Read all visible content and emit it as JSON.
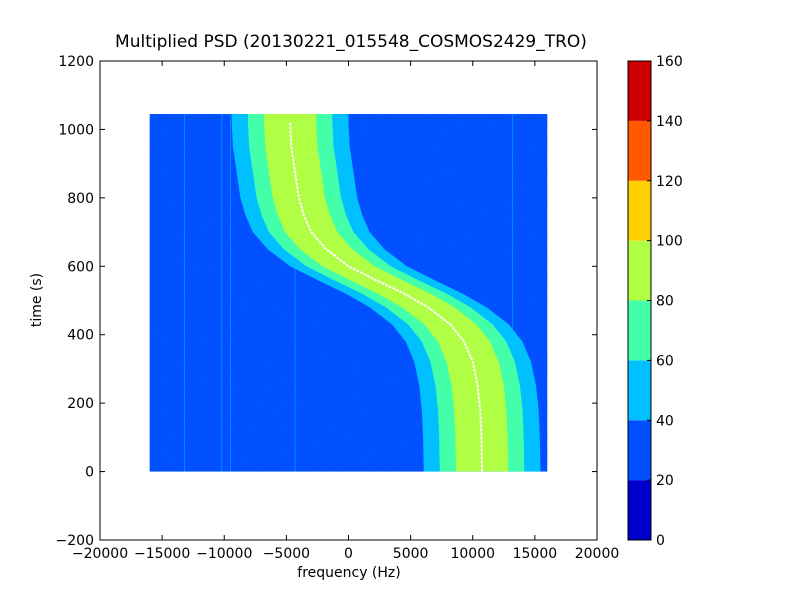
{
  "chart_data": {
    "type": "heatmap",
    "title": "Multiplied PSD (20130221_015548_COSMOS2429_TRO)",
    "xlabel": "frequency (Hz)",
    "ylabel": "time (s)",
    "xlim": [
      -20000,
      20000
    ],
    "ylim": [
      -200,
      1200
    ],
    "x_ticks": [
      -20000,
      -15000,
      -10000,
      -5000,
      0,
      5000,
      10000,
      15000,
      20000
    ],
    "x_tick_labels": [
      "−20000",
      "−15000",
      "−10000",
      "−5000",
      "0",
      "5000",
      "10000",
      "15000",
      "20000"
    ],
    "y_ticks": [
      -200,
      0,
      200,
      400,
      600,
      800,
      1000,
      1200
    ],
    "y_tick_labels": [
      "−200",
      "0",
      "200",
      "400",
      "600",
      "800",
      "1000",
      "1200"
    ],
    "data_extent": {
      "x": [
        -16000,
        16000
      ],
      "y": [
        0,
        1045
      ]
    },
    "colorbar": {
      "min": 0,
      "max": 160,
      "ticks": [
        0,
        20,
        40,
        60,
        80,
        100,
        120,
        140,
        160
      ],
      "tick_labels": [
        "0",
        "20",
        "40",
        "60",
        "80",
        "100",
        "120",
        "140",
        "160"
      ],
      "levels": [
        {
          "from": 0,
          "to": 20,
          "color": "#0000cc"
        },
        {
          "from": 20,
          "to": 40,
          "color": "#0050ff"
        },
        {
          "from": 40,
          "to": 60,
          "color": "#00c0ff"
        },
        {
          "from": 60,
          "to": 80,
          "color": "#44ffaa"
        },
        {
          "from": 80,
          "to": 100,
          "color": "#b0ff44"
        },
        {
          "from": 100,
          "to": 120,
          "color": "#ffd000"
        },
        {
          "from": 120,
          "to": 140,
          "color": "#ff5a00"
        },
        {
          "from": 140,
          "to": 160,
          "color": "#cc0000"
        }
      ]
    },
    "background_level_color": "#0050ff",
    "signal_track": {
      "description_levels": [
        "#00c0ff",
        "#44ffaa",
        "#b0ff44"
      ],
      "half_widths_hz": [
        4700,
        3400,
        2100
      ],
      "peak_line_color": "#ffffff",
      "points": [
        {
          "t": 1020,
          "f": -4700
        },
        {
          "t": 950,
          "f": -4600
        },
        {
          "t": 900,
          "f": -4400
        },
        {
          "t": 850,
          "f": -4200
        },
        {
          "t": 800,
          "f": -4000
        },
        {
          "t": 750,
          "f": -3600
        },
        {
          "t": 700,
          "f": -3000
        },
        {
          "t": 650,
          "f": -1800
        },
        {
          "t": 600,
          "f": 0
        },
        {
          "t": 560,
          "f": 2200
        },
        {
          "t": 520,
          "f": 4500
        },
        {
          "t": 480,
          "f": 6400
        },
        {
          "t": 430,
          "f": 8200
        },
        {
          "t": 380,
          "f": 9300
        },
        {
          "t": 320,
          "f": 10000
        },
        {
          "t": 250,
          "f": 10400
        },
        {
          "t": 180,
          "f": 10600
        },
        {
          "t": 100,
          "f": 10700
        },
        {
          "t": 0,
          "f": 10750
        }
      ]
    },
    "faint_lines_hz": [
      -13200,
      -10200,
      -9500,
      -4300,
      13200
    ]
  }
}
